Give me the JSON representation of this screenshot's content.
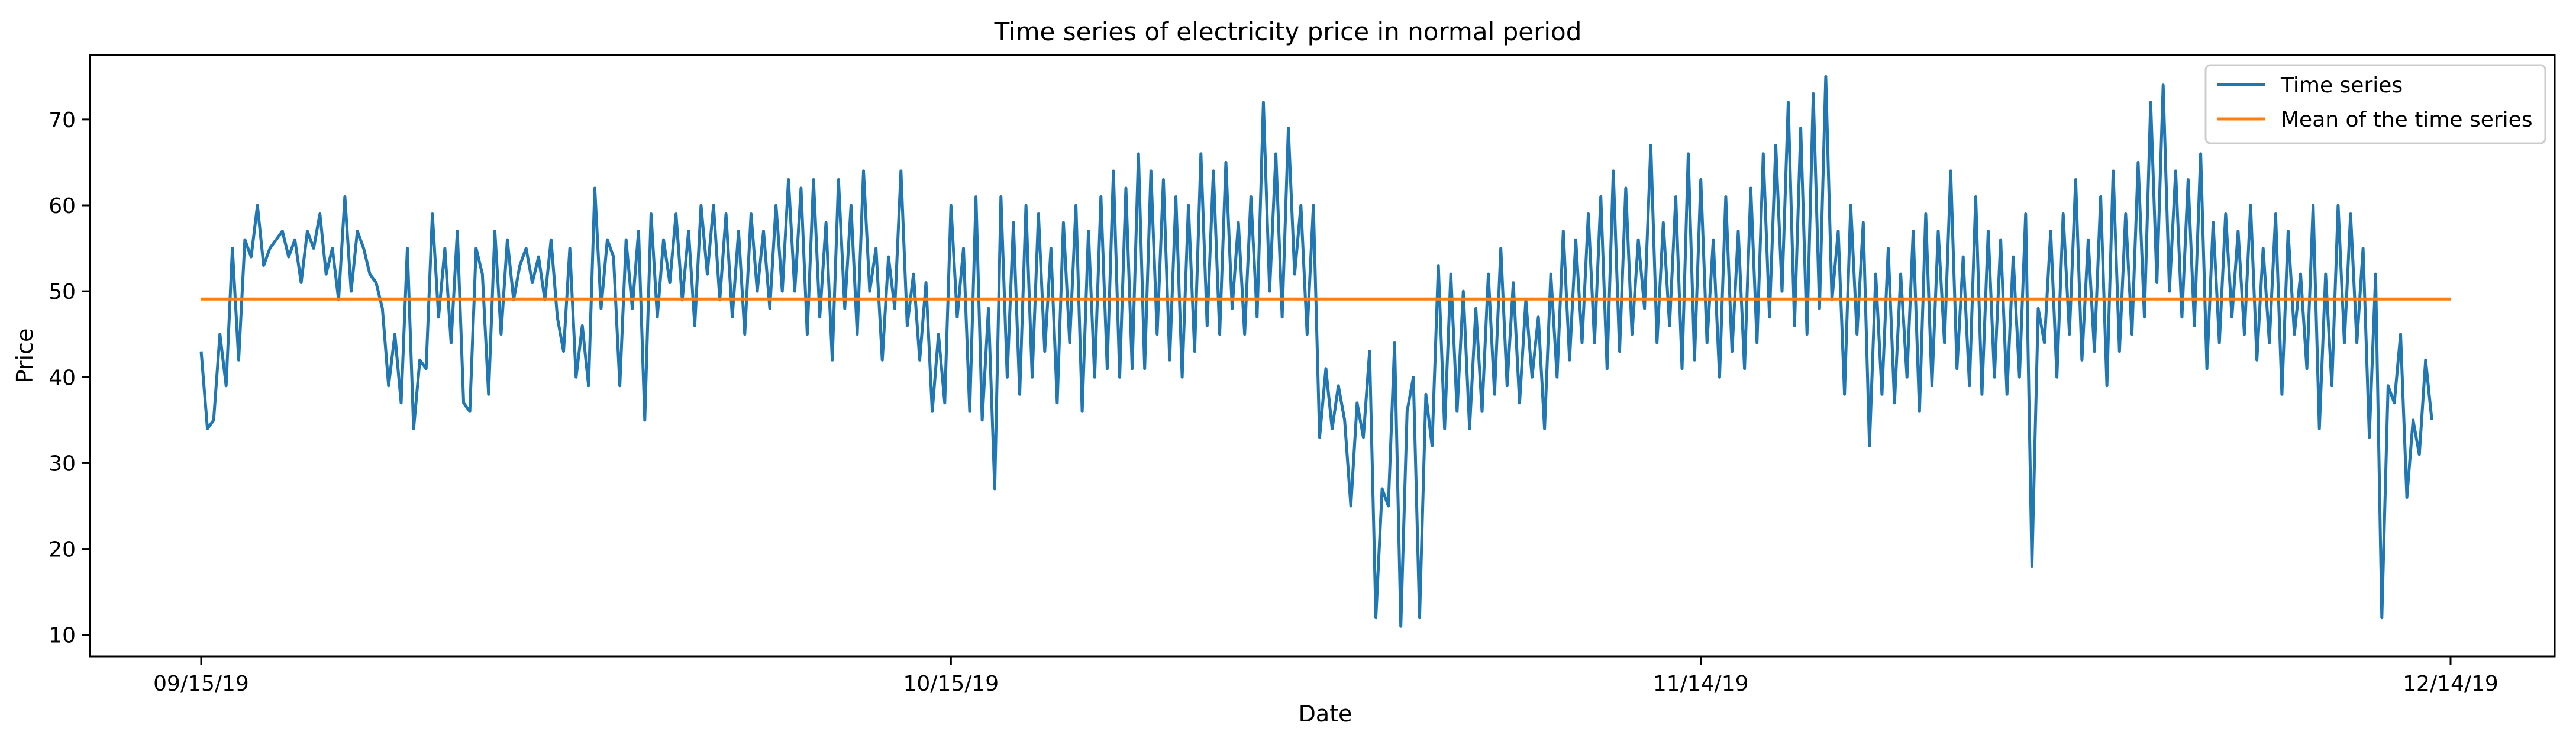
{
  "chart_data": {
    "type": "line",
    "title": "Time series of electricity price in normal period",
    "xlabel": "Date",
    "ylabel": "Price",
    "ylim": [
      7.5,
      77.5
    ],
    "yticks": [
      10,
      20,
      30,
      40,
      50,
      60,
      70
    ],
    "x_range_days": [
      0,
      90
    ],
    "xticks": [
      {
        "day": 0,
        "label": "09/15/19"
      },
      {
        "day": 30,
        "label": "10/15/19"
      },
      {
        "day": 60,
        "label": "11/14/19"
      },
      {
        "day": 90,
        "label": "12/14/19"
      }
    ],
    "legend_position": "upper-right",
    "colors": {
      "series": "#1f77b4",
      "mean": "#ff7f0e"
    },
    "series": [
      {
        "name": "Time series",
        "x_unit": "days since 09/15/19",
        "x_step": 0.25,
        "values": [
          43,
          34,
          35,
          45,
          39,
          55,
          42,
          56,
          54,
          60,
          53,
          55,
          56,
          57,
          54,
          56,
          51,
          57,
          55,
          59,
          52,
          55,
          49,
          61,
          50,
          57,
          55,
          52,
          51,
          48,
          39,
          45,
          37,
          55,
          34,
          42,
          41,
          59,
          47,
          55,
          44,
          57,
          37,
          36,
          55,
          52,
          38,
          57,
          45,
          56,
          49,
          53,
          55,
          51,
          54,
          49,
          56,
          47,
          43,
          55,
          40,
          46,
          39,
          62,
          48,
          56,
          54,
          39,
          56,
          48,
          57,
          35,
          59,
          47,
          56,
          51,
          59,
          49,
          57,
          46,
          60,
          52,
          60,
          49,
          59,
          47,
          57,
          45,
          59,
          50,
          57,
          48,
          60,
          50,
          63,
          50,
          62,
          45,
          63,
          47,
          58,
          42,
          63,
          48,
          60,
          45,
          64,
          50,
          55,
          42,
          54,
          48,
          64,
          46,
          52,
          42,
          51,
          36,
          45,
          37,
          60,
          47,
          55,
          36,
          61,
          35,
          48,
          27,
          61,
          40,
          58,
          38,
          60,
          40,
          59,
          43,
          55,
          37,
          58,
          44,
          60,
          36,
          57,
          40,
          61,
          41,
          64,
          40,
          62,
          41,
          66,
          41,
          64,
          45,
          63,
          42,
          61,
          40,
          60,
          43,
          66,
          46,
          64,
          45,
          65,
          48,
          58,
          45,
          61,
          47,
          72,
          50,
          66,
          47,
          69,
          52,
          60,
          45,
          60,
          33,
          41,
          34,
          39,
          35,
          25,
          37,
          33,
          43,
          12,
          27,
          25,
          44,
          11,
          36,
          40,
          12,
          38,
          32,
          53,
          34,
          52,
          36,
          50,
          34,
          48,
          36,
          52,
          38,
          55,
          39,
          51,
          37,
          49,
          40,
          47,
          34,
          52,
          40,
          57,
          42,
          56,
          44,
          59,
          44,
          61,
          41,
          64,
          43,
          62,
          45,
          56,
          48,
          67,
          44,
          58,
          46,
          61,
          41,
          66,
          42,
          63,
          44,
          56,
          40,
          61,
          43,
          57,
          41,
          62,
          44,
          66,
          47,
          67,
          50,
          72,
          46,
          69,
          45,
          73,
          48,
          75,
          49,
          57,
          38,
          60,
          45,
          58,
          32,
          52,
          38,
          55,
          37,
          52,
          40,
          57,
          36,
          59,
          39,
          57,
          44,
          64,
          41,
          54,
          39,
          61,
          38,
          57,
          40,
          56,
          38,
          54,
          40,
          59,
          18,
          48,
          44,
          57,
          40,
          59,
          45,
          63,
          42,
          56,
          43,
          61,
          39,
          64,
          43,
          59,
          45,
          65,
          47,
          72,
          51,
          74,
          50,
          64,
          47,
          63,
          46,
          66,
          41,
          58,
          44,
          59,
          47,
          57,
          45,
          60,
          42,
          55,
          44,
          59,
          38,
          57,
          45,
          52,
          41,
          60,
          34,
          52,
          39,
          60,
          44,
          59,
          44,
          55,
          33,
          52,
          12,
          39,
          37,
          45,
          26,
          35,
          31,
          42,
          35
        ]
      },
      {
        "name": "Mean of the time series",
        "constant": 49.1
      }
    ]
  }
}
